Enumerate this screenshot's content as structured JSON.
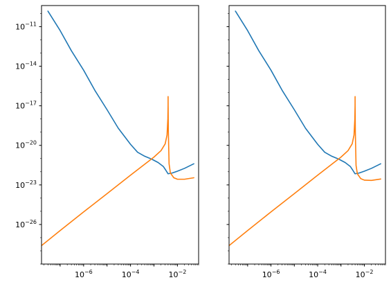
{
  "chart_data": [
    {
      "type": "line",
      "panel": "left",
      "xscale": "log",
      "yscale": "log",
      "xlim": [
        1.6e-08,
        0.08
      ],
      "ylim": [
        1e-29,
        4e-10
      ],
      "xticks": [
        1e-06,
        0.0001,
        0.01
      ],
      "xtick_labels": [
        "10^-6",
        "10^-4",
        "10^-2"
      ],
      "yticks": [
        1e-11,
        1e-14,
        1e-17,
        1e-20,
        1e-23,
        1e-26
      ],
      "ytick_labels": [
        "10^-11",
        "10^-14",
        "10^-17",
        "10^-20",
        "10^-23",
        "10^-26"
      ],
      "grid": false,
      "series": [
        {
          "color": "#1f77b4",
          "x": [
            3e-08,
            1e-07,
            3e-07,
            1e-06,
            3e-06,
            1e-05,
            3e-05,
            0.0001,
            0.0002,
            0.0004,
            0.0008,
            0.0015,
            0.0025,
            0.0032,
            0.0038,
            0.004,
            0.006,
            0.01,
            0.02,
            0.05
          ],
          "y": [
            1.5e-10,
            5e-12,
            1.5e-13,
            5e-15,
            1.5e-16,
            5e-18,
            2e-19,
            1.2e-20,
            3e-21,
            1.5e-21,
            9e-22,
            5e-22,
            2.5e-22,
            1.3e-22,
            8e-23,
            7e-23,
            8e-23,
            1.1e-22,
            1.8e-22,
            4e-22
          ]
        },
        {
          "color": "#ff7f0e",
          "x": [
            1.6e-08,
            1e-07,
            1e-06,
            1e-05,
            0.0001,
            0.001,
            0.002,
            0.003,
            0.0036,
            0.0039,
            0.00399,
            0.004,
            0.00401,
            0.0041,
            0.0044,
            0.005,
            0.007,
            0.01,
            0.02,
            0.05
          ],
          "y": [
            2.5e-28,
            3.5e-27,
            9e-26,
            2.2e-24,
            5.5e-23,
            1.3e-21,
            4e-21,
            1.3e-20,
            6e-20,
            1e-18,
            1e-17,
            5e-17,
            1e-17,
            1e-19,
            4e-22,
            8e-23,
            3.5e-23,
            2.7e-23,
            2.7e-23,
            3.5e-23
          ]
        }
      ]
    },
    {
      "type": "line",
      "panel": "right",
      "xscale": "log",
      "yscale": "log",
      "sharey": true,
      "xlim": [
        1.6e-08,
        0.08
      ],
      "ylim": [
        1e-29,
        4e-10
      ],
      "xticks": [
        1e-06,
        0.0001,
        0.01
      ],
      "xtick_labels": [
        "10^-6",
        "10^-4",
        "10^-2"
      ],
      "yticks": [
        1e-11,
        1e-14,
        1e-17,
        1e-20,
        1e-23,
        1e-26
      ],
      "grid": false,
      "series": [
        {
          "color": "#1f77b4",
          "x": [
            3e-08,
            1e-07,
            3e-07,
            1e-06,
            3e-06,
            1e-05,
            3e-05,
            0.0001,
            0.0002,
            0.0004,
            0.0008,
            0.0015,
            0.0025,
            0.0032,
            0.0038,
            0.004,
            0.006,
            0.01,
            0.02,
            0.05
          ],
          "y": [
            1.5e-10,
            5e-12,
            1.5e-13,
            5e-15,
            1.5e-16,
            5e-18,
            2e-19,
            1.2e-20,
            3e-21,
            1.5e-21,
            9e-22,
            5e-22,
            2.5e-22,
            1.3e-22,
            8e-23,
            7e-23,
            8e-23,
            1.1e-22,
            1.8e-22,
            4e-22
          ]
        },
        {
          "color": "#ff7f0e",
          "x": [
            1.6e-08,
            1e-07,
            1e-06,
            1e-05,
            0.0001,
            0.001,
            0.002,
            0.003,
            0.0036,
            0.0039,
            0.00399,
            0.004,
            0.00401,
            0.0041,
            0.0044,
            0.005,
            0.007,
            0.01,
            0.02,
            0.05
          ],
          "y": [
            2.5e-28,
            3.5e-27,
            9e-26,
            2.2e-24,
            5.5e-23,
            1.3e-21,
            4e-21,
            1.3e-20,
            6e-20,
            1e-18,
            1e-17,
            5e-17,
            1e-17,
            1e-19,
            3e-22,
            7e-23,
            3e-23,
            2.3e-23,
            2.2e-23,
            2.8e-23
          ]
        }
      ]
    }
  ]
}
